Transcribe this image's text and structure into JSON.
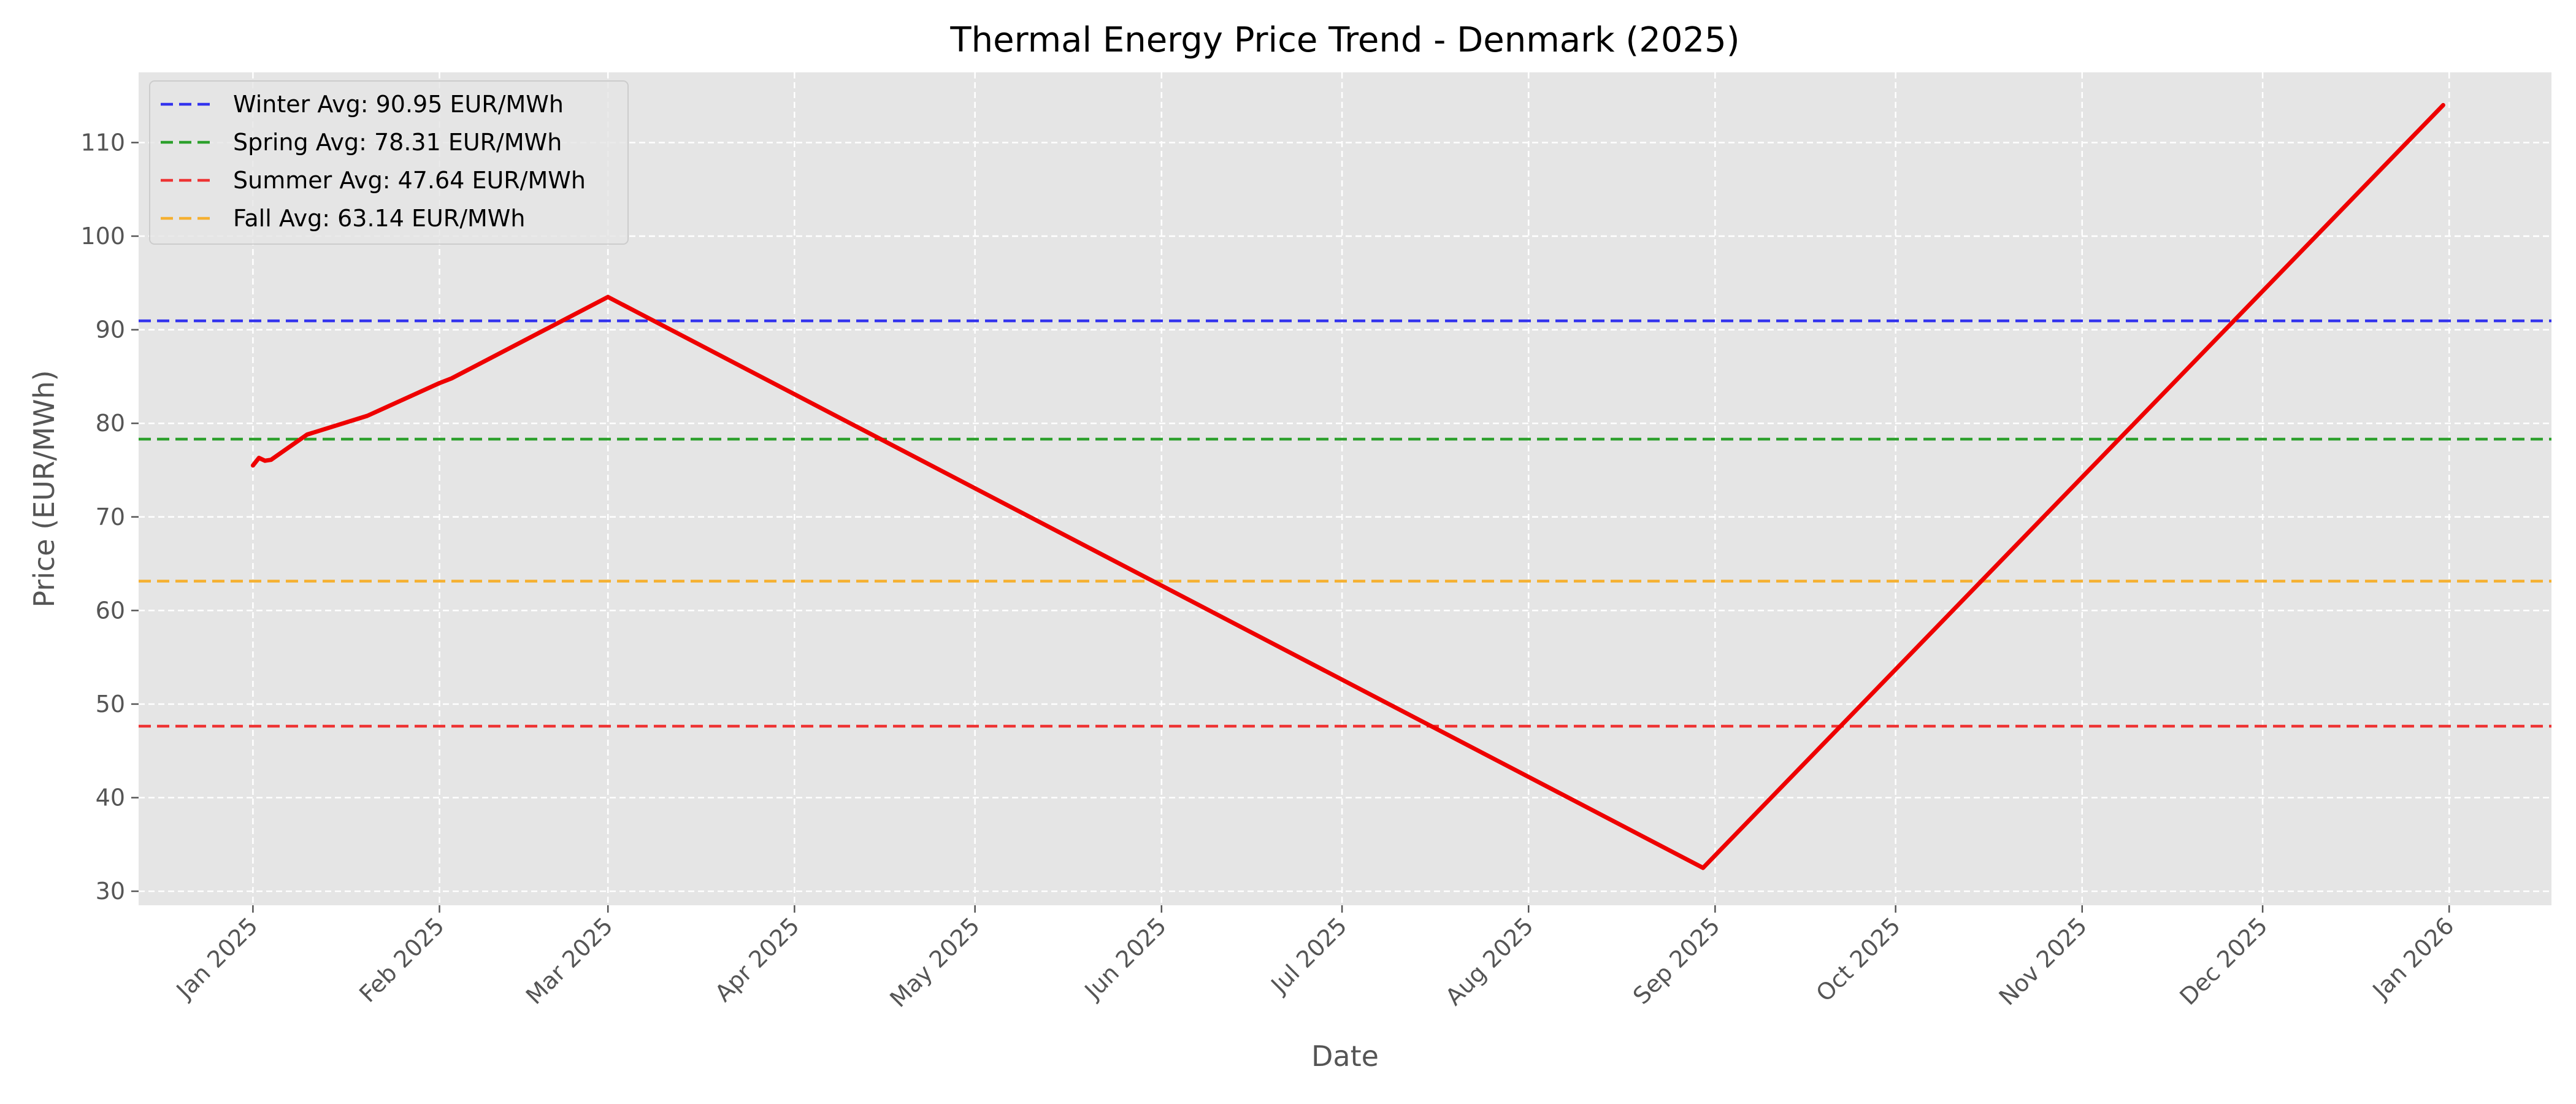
{
  "chart_data": {
    "type": "line",
    "title": "Thermal Energy Price Trend - Denmark (2025)",
    "xlabel": "Date",
    "ylabel": "Price (EUR/MWh)",
    "x_axis_type": "date",
    "xlim": [
      "2024-12-13",
      "2026-01-18"
    ],
    "ylim": [
      28.5,
      117.5
    ],
    "grid": true,
    "legend_position": "top-left",
    "x_ticks": [
      "2025-01-01",
      "2025-02-01",
      "2025-03-01",
      "2025-04-01",
      "2025-05-01",
      "2025-06-01",
      "2025-07-01",
      "2025-08-01",
      "2025-09-01",
      "2025-10-01",
      "2025-11-01",
      "2025-12-01",
      "2026-01-01"
    ],
    "x_tick_labels": [
      "Jan 2025",
      "Feb 2025",
      "Mar 2025",
      "Apr 2025",
      "May 2025",
      "Jun 2025",
      "Jul 2025",
      "Aug 2025",
      "Sep 2025",
      "Oct 2025",
      "Nov 2025",
      "Dec 2025",
      "Jan 2026"
    ],
    "y_ticks": [
      30,
      40,
      50,
      60,
      70,
      80,
      90,
      100,
      110
    ],
    "y_tick_labels": [
      "30",
      "40",
      "50",
      "60",
      "70",
      "80",
      "90",
      "100",
      "110"
    ],
    "series": [
      {
        "color": "#ee0000",
        "style": "solid",
        "x": [
          "2025-01-01",
          "2025-01-02",
          "2025-01-03",
          "2025-01-04",
          "2025-01-10",
          "2025-01-20",
          "2025-02-01",
          "2025-02-03",
          "2025-03-01",
          "2025-08-30",
          "2025-12-31"
        ],
        "y": [
          75.5,
          76.3,
          76.0,
          76.1,
          78.8,
          80.8,
          84.3,
          84.8,
          93.5,
          32.5,
          114.0
        ]
      }
    ],
    "reference_lines": [
      {
        "name": "Winter Avg: 90.95 EUR/MWh",
        "y": 90.95,
        "color": "#3333ee",
        "style": "dashed"
      },
      {
        "name": "Spring Avg: 78.31 EUR/MWh",
        "y": 78.31,
        "color": "#2ca02c",
        "style": "dashed"
      },
      {
        "name": "Summer Avg: 47.64 EUR/MWh",
        "y": 47.64,
        "color": "#ee3333",
        "style": "dashed"
      },
      {
        "name": "Fall Avg: 63.14 EUR/MWh",
        "y": 63.14,
        "color": "#f5b030",
        "style": "dashed"
      }
    ],
    "colors": {
      "plot_background": "#e5e5e5",
      "grid": "#ffffff",
      "price_line": "#ee0000"
    }
  }
}
